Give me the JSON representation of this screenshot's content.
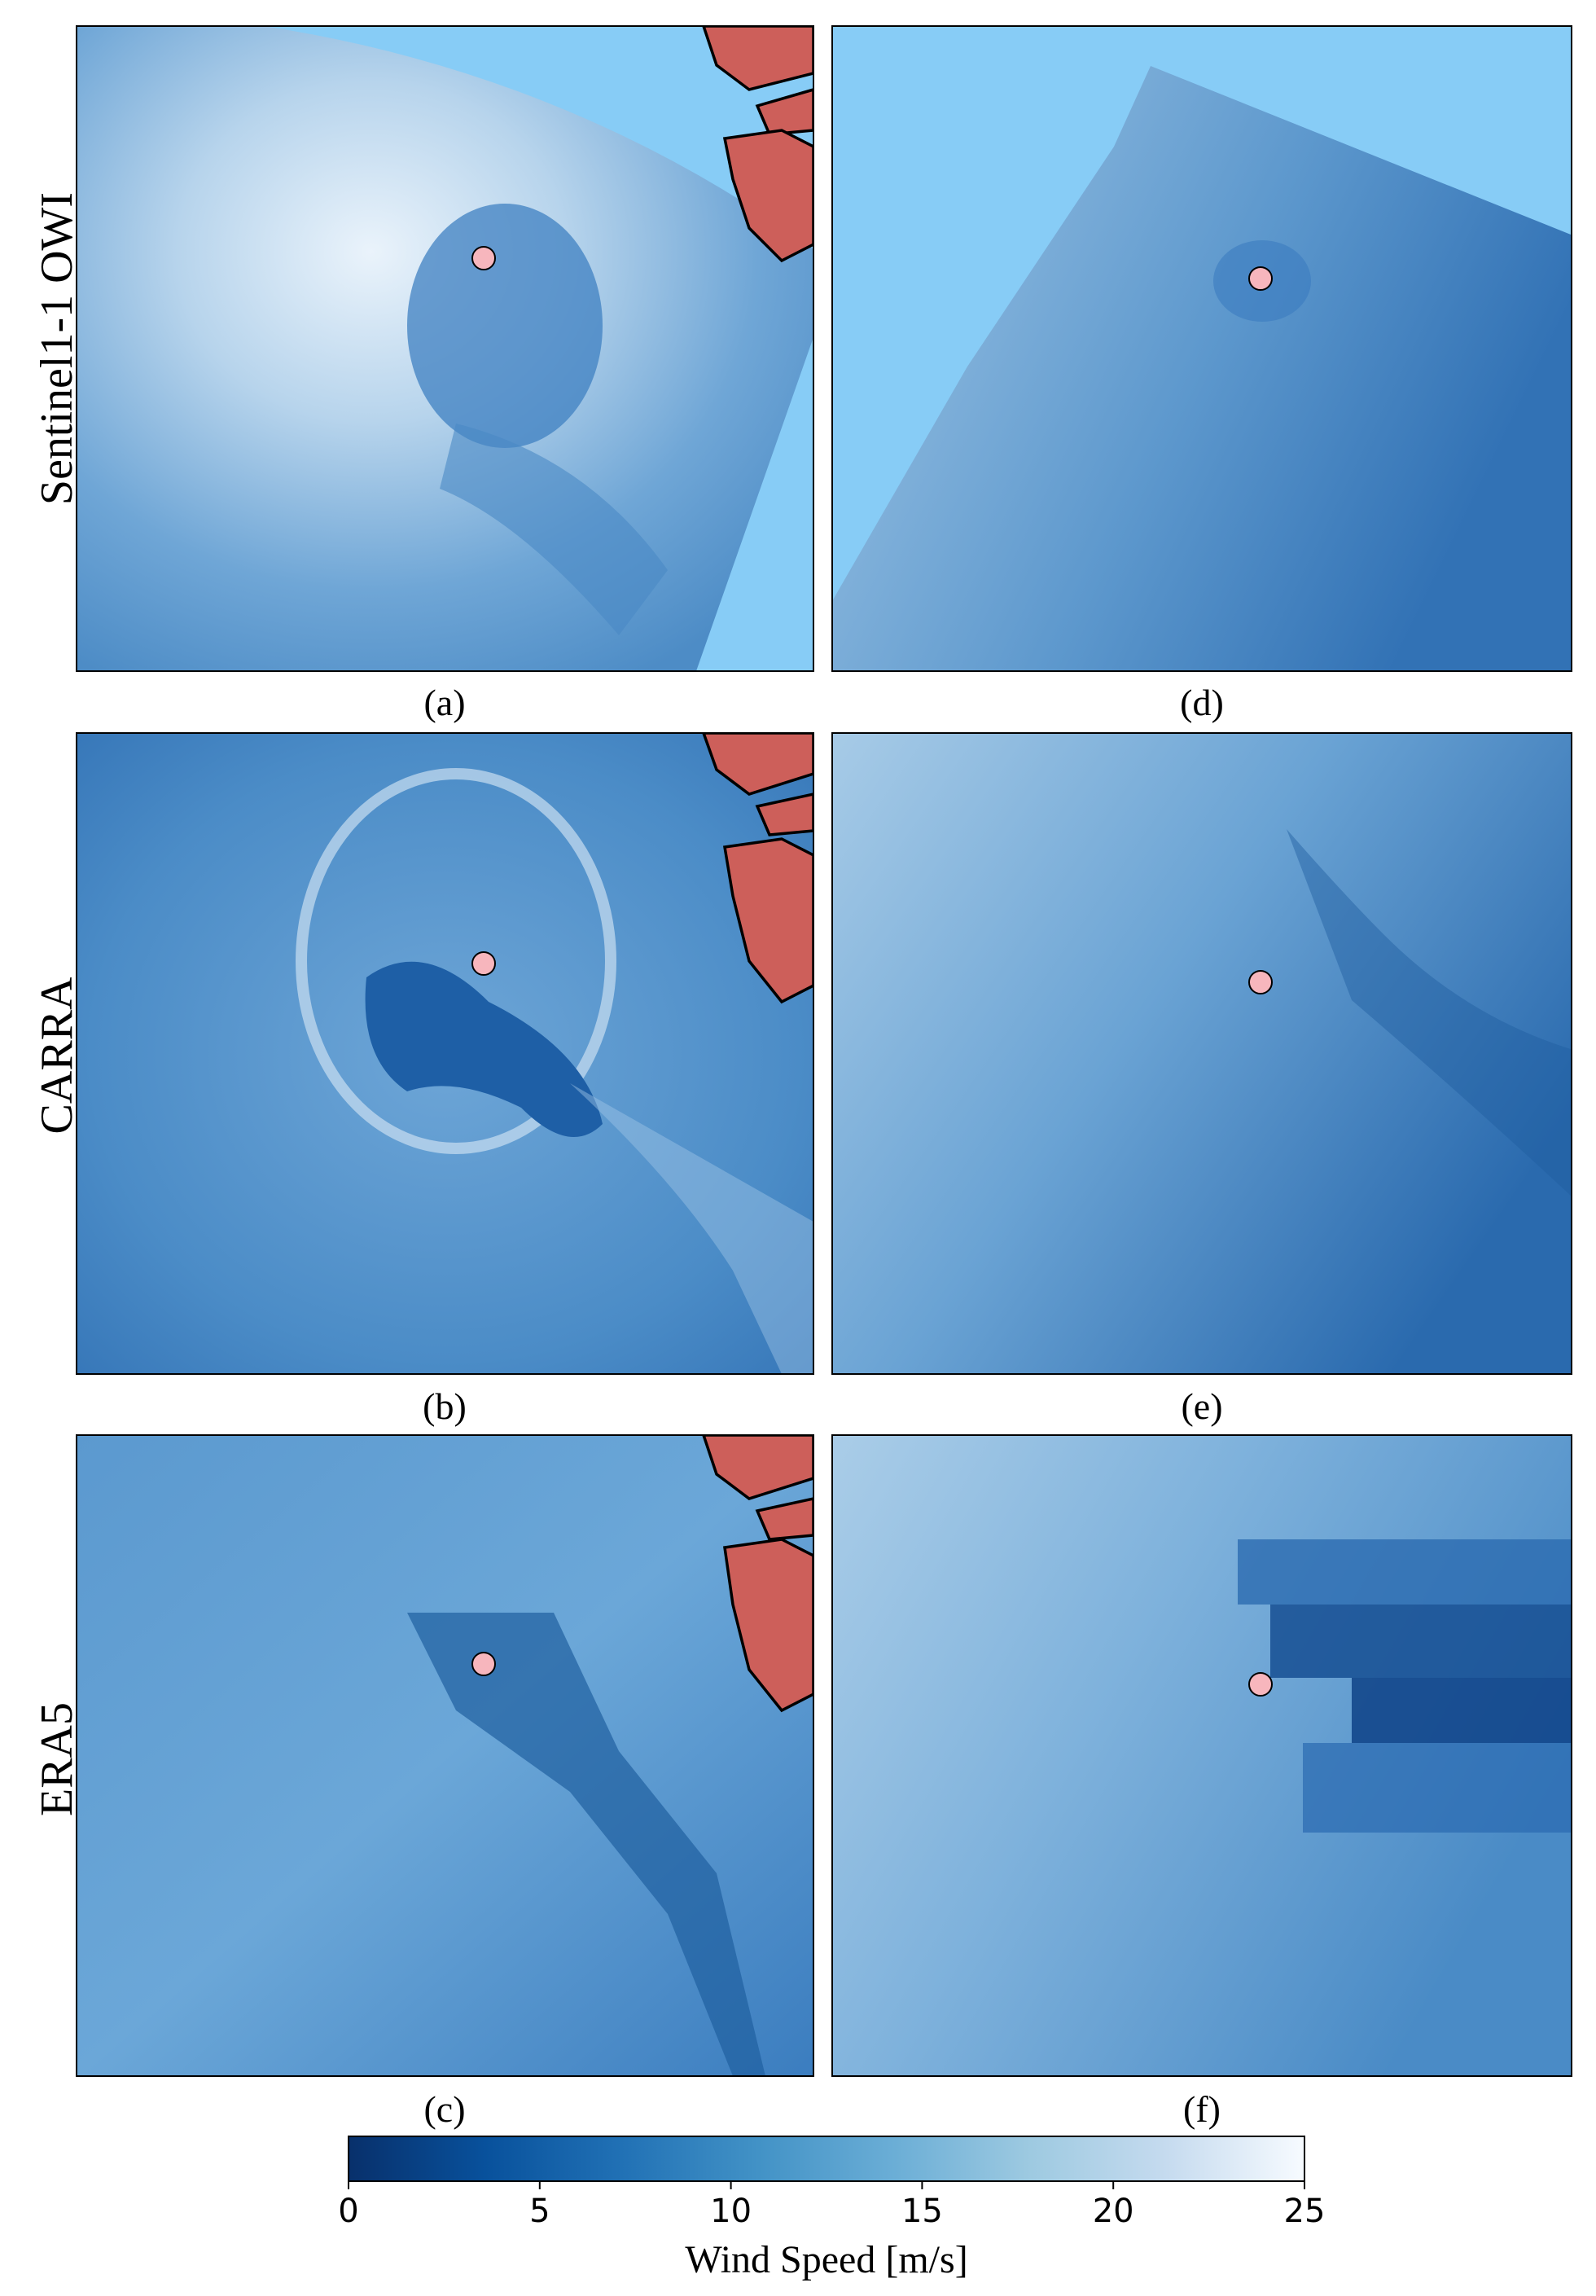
{
  "row_labels": [
    "Sentinel1-1 OWI",
    "CARRA",
    "ERA5"
  ],
  "panels": [
    "(a)",
    "(b)",
    "(c)",
    "(d)",
    "(e)",
    "(f)"
  ],
  "colorbar": {
    "label": "Wind Speed [m/s]",
    "lim": [
      0,
      25
    ],
    "ticks": [
      0,
      5,
      10,
      15,
      20,
      25
    ],
    "colors": [
      "#08306b",
      "#08519c",
      "#2171b5",
      "#4292c6",
      "#6baed6",
      "#9ecae1",
      "#c6dbef",
      "#f7fbff"
    ]
  }
}
